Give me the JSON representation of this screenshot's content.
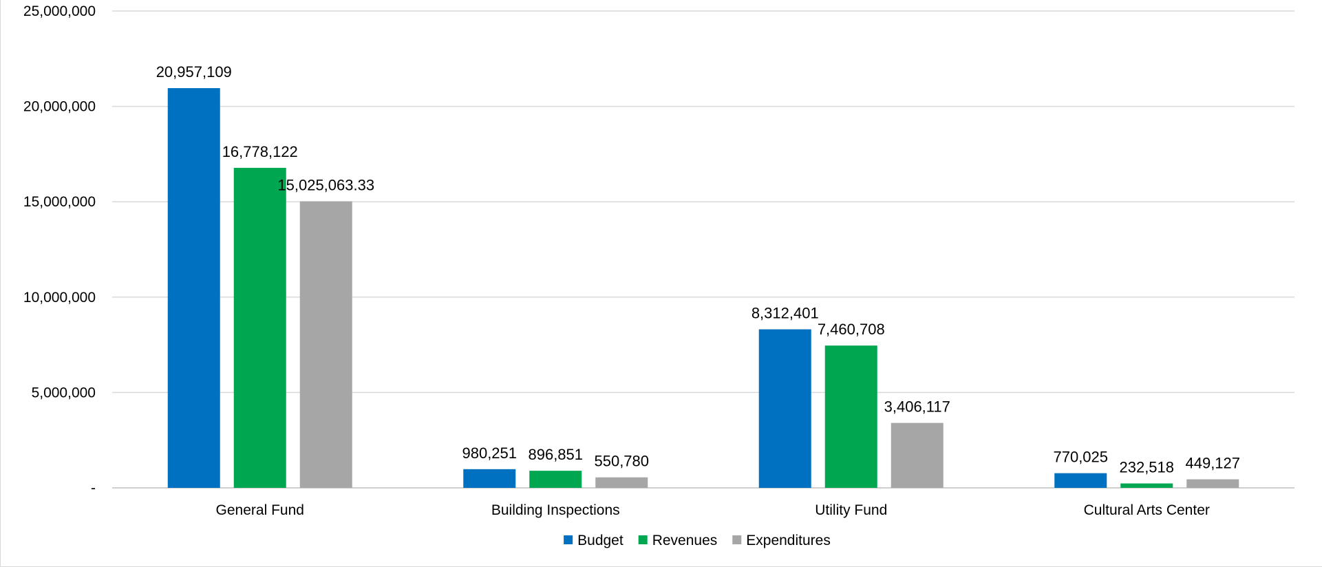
{
  "chart_data": {
    "type": "bar",
    "title": "",
    "xlabel": "",
    "ylabel": "",
    "categories": [
      "General Fund",
      "Building Inspections",
      "Utility Fund",
      "Cultural Arts Center"
    ],
    "series": [
      {
        "name": "Budget",
        "color": "#0070c0",
        "values": [
          20957109,
          980251,
          8312401,
          770025
        ],
        "labels": [
          "20,957,109",
          "980,251",
          "8,312,401",
          "770,025"
        ]
      },
      {
        "name": "Revenues",
        "color": "#00a650",
        "values": [
          16778122,
          896851,
          7460708,
          232518
        ],
        "labels": [
          "16,778,122",
          "896,851",
          "7,460,708",
          "232,518"
        ]
      },
      {
        "name": "Expenditures",
        "color": "#a6a6a6",
        "values": [
          15025063.33,
          550780,
          3406117,
          449127
        ],
        "labels": [
          "15,025,063.33",
          "550,780",
          "3,406,117",
          "449,127"
        ]
      }
    ],
    "ylim": [
      0,
      25000000
    ],
    "y_ticks": [
      0,
      5000000,
      10000000,
      15000000,
      20000000,
      25000000
    ],
    "y_tick_labels": [
      "-",
      "5,000,000",
      "10,000,000",
      "15,000,000",
      "20,000,000",
      "25,000,000"
    ],
    "grid": true,
    "legend_position": "bottom-center"
  }
}
